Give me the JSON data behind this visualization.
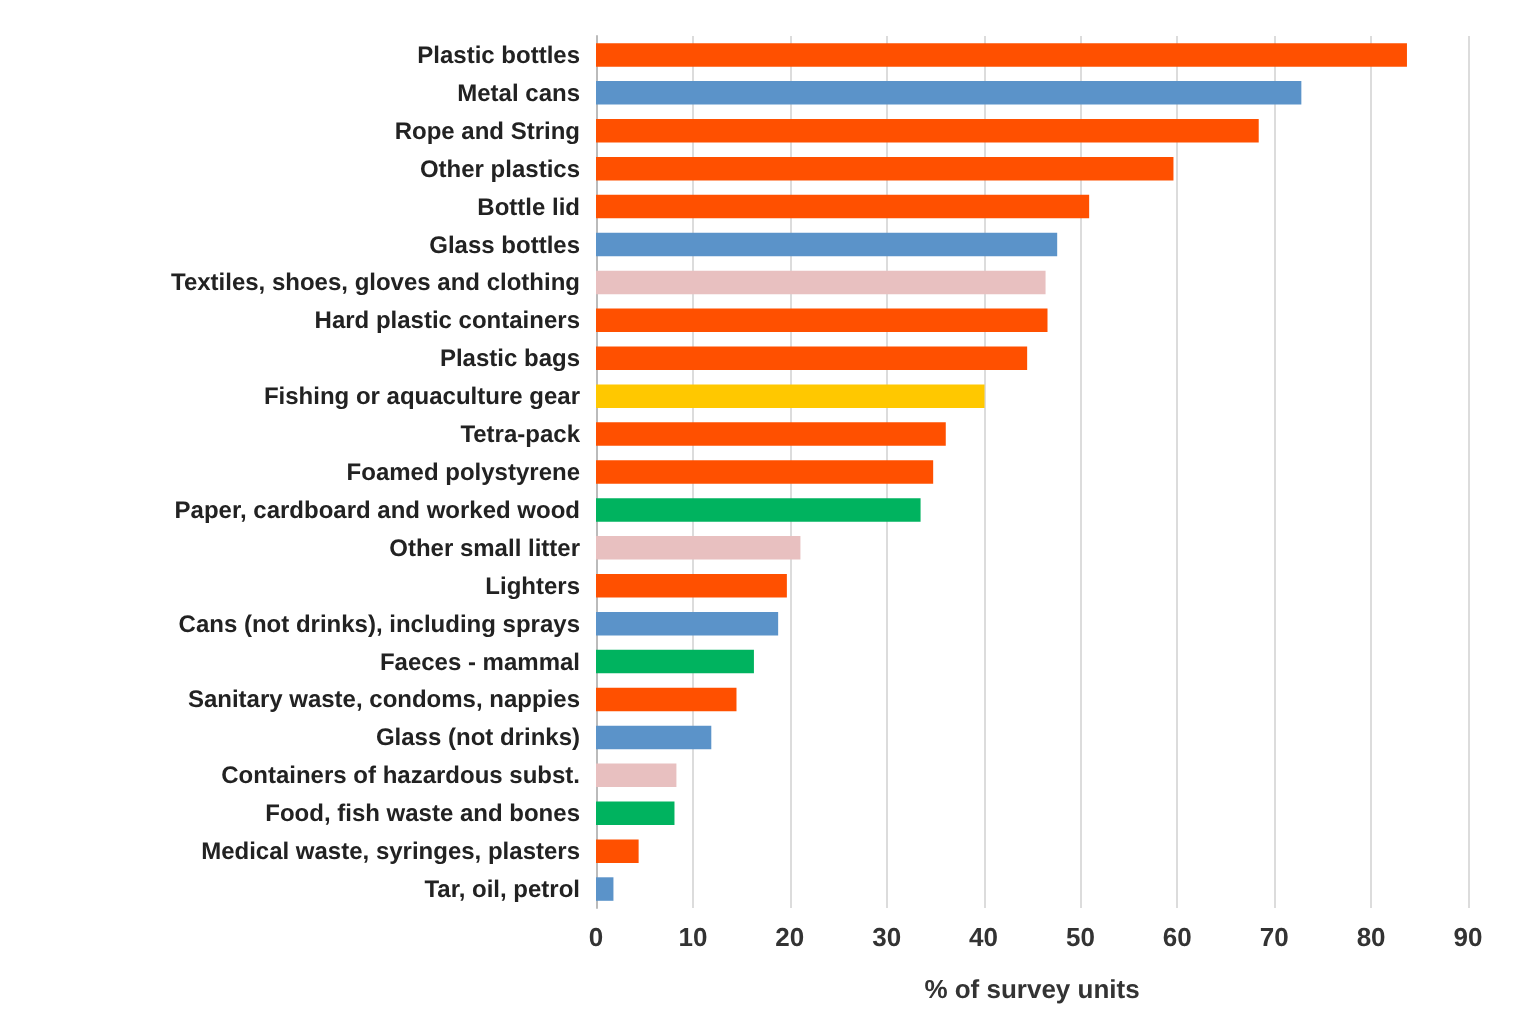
{
  "chart_data": {
    "type": "bar",
    "orientation": "horizontal",
    "xlabel": "% of survey units",
    "categories": [
      "Plastic bottles",
      "Metal cans",
      "Rope and String",
      "Other plastics",
      "Bottle lid",
      "Glass bottles",
      "Textiles, shoes, gloves and clothing",
      "Hard plastic containers",
      "Plastic bags",
      "Fishing or aquaculture gear",
      "Tetra-pack",
      "Foamed polystyrene",
      "Paper, cardboard and worked wood",
      "Other small litter",
      "Lighters",
      "Cans (not drinks), including sprays",
      "Faeces - mammal",
      "Sanitary waste, condoms, nappies",
      "Glass (not drinks)",
      "Containers of hazardous subst.",
      "Food, fish waste and bones",
      "Medical waste, syringes, plasters",
      "Tar, oil, petrol"
    ],
    "values": [
      83.7,
      72.8,
      68.4,
      59.6,
      50.9,
      47.6,
      46.4,
      46.6,
      44.5,
      40.1,
      36.1,
      34.8,
      33.5,
      21.1,
      19.7,
      18.8,
      16.3,
      14.5,
      11.9,
      8.3,
      8.1,
      4.4,
      1.8
    ],
    "colors": [
      "#ff5000",
      "#5b93c9",
      "#ff5000",
      "#ff5000",
      "#ff5000",
      "#5b93c9",
      "#e8c0c0",
      "#ff5000",
      "#ff5000",
      "#ffc800",
      "#ff5000",
      "#ff5000",
      "#00b35f",
      "#e8c0c0",
      "#ff5000",
      "#5b93c9",
      "#00b35f",
      "#ff5000",
      "#5b93c9",
      "#e8c0c0",
      "#00b35f",
      "#ff5000",
      "#5b93c9"
    ],
    "xlim": [
      0,
      90
    ],
    "xticks": [
      0,
      10,
      20,
      30,
      40,
      50,
      60,
      70,
      80,
      90
    ],
    "grid": "x"
  }
}
